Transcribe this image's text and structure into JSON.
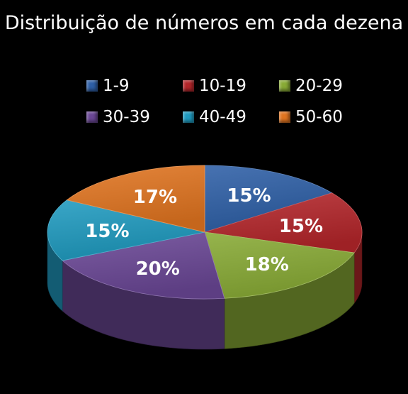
{
  "chart_data": {
    "type": "pie",
    "title": "Distribuição de números em cada dezena",
    "legend_position": "top",
    "categories": [
      "1-9",
      "10-19",
      "20-29",
      "30-39",
      "40-49",
      "50-60"
    ],
    "values": [
      15,
      15,
      18,
      20,
      15,
      17
    ],
    "value_labels": [
      "15%",
      "15%",
      "18%",
      "20%",
      "15%",
      "17%"
    ],
    "colors": [
      "#2e5fa6",
      "#b3262a",
      "#88aa35",
      "#6a4795",
      "#1f9abf",
      "#e07420"
    ]
  }
}
